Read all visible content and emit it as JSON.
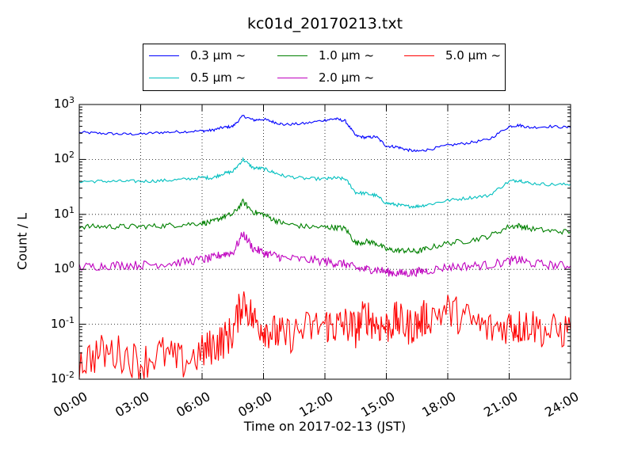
{
  "chart_data": {
    "type": "line",
    "title": "kc01d_20170213.txt",
    "xlabel": "Time on 2017-02-13 (JST)",
    "ylabel": "Count / L",
    "yscale": "log",
    "ylim": [
      0.01,
      1000
    ],
    "xlim": [
      "2017-02-13 00:00",
      "2017-02-14 00:00"
    ],
    "grid": true,
    "legend_placement": "top-center, outside plot",
    "x_tick_labels": [
      "00:00",
      "03:00",
      "06:00",
      "09:00",
      "12:00",
      "15:00",
      "18:00",
      "21:00",
      "24:00"
    ],
    "y_tick_labels": [
      {
        "base": "10",
        "exp": "-2"
      },
      {
        "base": "10",
        "exp": "-1"
      },
      {
        "base": "10",
        "exp": "0"
      },
      {
        "base": "10",
        "exp": "1"
      },
      {
        "base": "10",
        "exp": "2"
      },
      {
        "base": "10",
        "exp": "3"
      }
    ],
    "x": [
      "00:00",
      "01:00",
      "02:00",
      "03:00",
      "04:00",
      "05:00",
      "06:00",
      "06:30",
      "07:00",
      "07:30",
      "08:00",
      "08:30",
      "09:00",
      "09:30",
      "10:00",
      "11:00",
      "12:00",
      "12:30",
      "13:00",
      "13:30",
      "14:00",
      "14:30",
      "15:00",
      "15:30",
      "16:00",
      "16:30",
      "17:00",
      "18:00",
      "19:00",
      "20:00",
      "21:00",
      "21:30",
      "22:00",
      "23:00",
      "24:00"
    ],
    "series": [
      {
        "name": "0.3 μm ~",
        "color": "#0000ff",
        "values": [
          310,
          300,
          290,
          290,
          310,
          320,
          330,
          340,
          380,
          400,
          620,
          520,
          540,
          480,
          430,
          450,
          520,
          550,
          500,
          270,
          250,
          260,
          175,
          170,
          150,
          140,
          150,
          180,
          200,
          230,
          400,
          420,
          380,
          400,
          380
        ]
      },
      {
        "name": "0.5 μm ~",
        "color": "#00bfbf",
        "values": [
          40,
          40,
          40,
          40,
          41,
          43,
          47,
          46,
          55,
          60,
          100,
          70,
          68,
          58,
          50,
          45,
          44,
          46,
          44,
          25,
          24,
          22,
          16,
          15,
          14,
          14,
          15,
          18,
          20,
          22,
          40,
          42,
          37,
          35,
          35
        ]
      },
      {
        "name": "1.0 μm ~",
        "color": "#008000",
        "values": [
          6,
          6,
          6,
          6,
          6.2,
          6.5,
          7,
          7.2,
          9,
          10,
          17,
          11,
          10,
          8,
          6.8,
          6,
          5.8,
          5.8,
          5.5,
          3,
          3.2,
          3,
          2.3,
          2.2,
          2.2,
          2.1,
          2.4,
          3,
          3.3,
          4,
          6,
          6.2,
          5.5,
          5,
          4.8
        ]
      },
      {
        "name": "2.0 μm ~",
        "color": "#bf00bf",
        "values": [
          1.1,
          1.15,
          1.2,
          1.2,
          1.25,
          1.35,
          1.5,
          1.6,
          1.9,
          2,
          4.5,
          2.4,
          2,
          1.8,
          1.6,
          1.5,
          1.4,
          1.3,
          1.25,
          1.05,
          1,
          1,
          0.9,
          0.85,
          0.85,
          0.9,
          0.95,
          1.1,
          1.15,
          1.2,
          1.4,
          1.5,
          1.3,
          1.2,
          1.15
        ]
      },
      {
        "name": "5.0 μm ~",
        "color": "#ff0000",
        "values": [
          0.02,
          0.03,
          0.03,
          0.02,
          0.03,
          0.02,
          0.03,
          0.04,
          0.05,
          0.07,
          0.3,
          0.12,
          0.09,
          0.07,
          0.06,
          0.08,
          0.1,
          0.09,
          0.1,
          0.08,
          0.15,
          0.1,
          0.09,
          0.12,
          0.09,
          0.1,
          0.14,
          0.18,
          0.12,
          0.08,
          0.1,
          0.09,
          0.1,
          0.07,
          0.08
        ]
      }
    ]
  }
}
